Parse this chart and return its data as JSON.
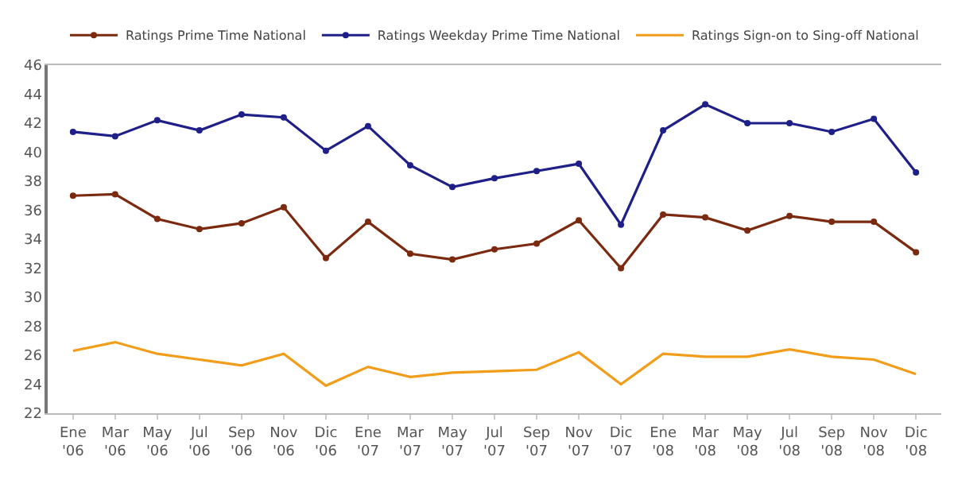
{
  "chart_data": {
    "type": "line",
    "categories": [
      "Ene\n'06",
      "Mar\n'06",
      "May\n'06",
      "Jul\n'06",
      "Sep\n'06",
      "Nov\n'06",
      "Dic\n'06",
      "Ene\n'07",
      "Mar\n'07",
      "May\n'07",
      "Jul\n'07",
      "Sep\n'07",
      "Nov\n'07",
      "Dic\n'07",
      "Ene\n'08",
      "Mar\n'08",
      "May\n'08",
      "Jul\n'08",
      "Sep\n'08",
      "Nov\n'08",
      "Dic\n'08"
    ],
    "series": [
      {
        "name": "Ratings Prime Time National",
        "color": "#7b2a10",
        "marker": "circle",
        "values": [
          37.0,
          37.1,
          35.4,
          34.7,
          35.1,
          36.2,
          32.7,
          35.2,
          33.0,
          32.6,
          33.3,
          33.7,
          35.3,
          32.0,
          35.7,
          35.5,
          34.6,
          35.6,
          35.2,
          35.2,
          33.1
        ]
      },
      {
        "name": "Ratings Weekday Prime Time National",
        "color": "#1f1f8a",
        "marker": "circle",
        "values": [
          41.4,
          41.1,
          42.2,
          41.5,
          42.6,
          42.4,
          40.1,
          41.8,
          39.1,
          37.6,
          38.2,
          38.7,
          39.2,
          35.0,
          41.5,
          43.3,
          42.0,
          42.0,
          41.4,
          42.3,
          38.6
        ]
      },
      {
        "name": "Ratings Sign-on to Sing-off National",
        "color": "#f29d1a",
        "marker": "none",
        "values": [
          26.3,
          26.9,
          26.1,
          25.7,
          25.3,
          26.1,
          23.9,
          25.2,
          24.5,
          24.8,
          24.9,
          25.0,
          26.2,
          24.0,
          26.1,
          25.9,
          25.9,
          26.4,
          25.9,
          25.7,
          24.7
        ]
      }
    ],
    "ylim": [
      22,
      46
    ],
    "yticks": [
      22,
      24,
      26,
      28,
      30,
      32,
      34,
      36,
      38,
      40,
      42,
      44,
      46
    ],
    "legend": "top",
    "line_style": "solid"
  }
}
